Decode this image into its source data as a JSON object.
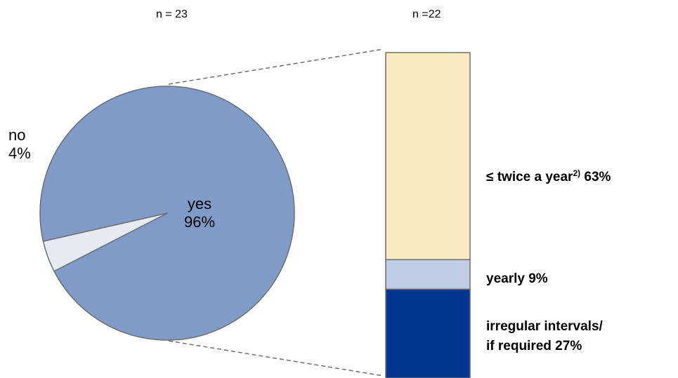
{
  "chart_data": [
    {
      "type": "pie",
      "n_label": "n = 23",
      "slices": [
        {
          "name": "yes",
          "value": 96,
          "value_label": "96%",
          "color": "#7f9bc8"
        },
        {
          "name": "no",
          "value": 4,
          "value_label": "4%",
          "color": "#e6eaf3"
        }
      ]
    },
    {
      "type": "bar",
      "stacked": true,
      "n_label": "n =22",
      "segments": [
        {
          "label_main": "≤ twice a year",
          "label_sup": "2)",
          "label_value": "63%",
          "value": 63,
          "color": "#f8ebbf"
        },
        {
          "label_main": "yearly 9%",
          "value": 9,
          "color": "#c0cce3"
        },
        {
          "label_line1": "irregular intervals/",
          "label_line2": "if required 27%",
          "value": 27,
          "color": "#003591"
        }
      ]
    }
  ],
  "colors": {
    "outline": "#6f6f6f",
    "connector": "#6f6f6f"
  }
}
